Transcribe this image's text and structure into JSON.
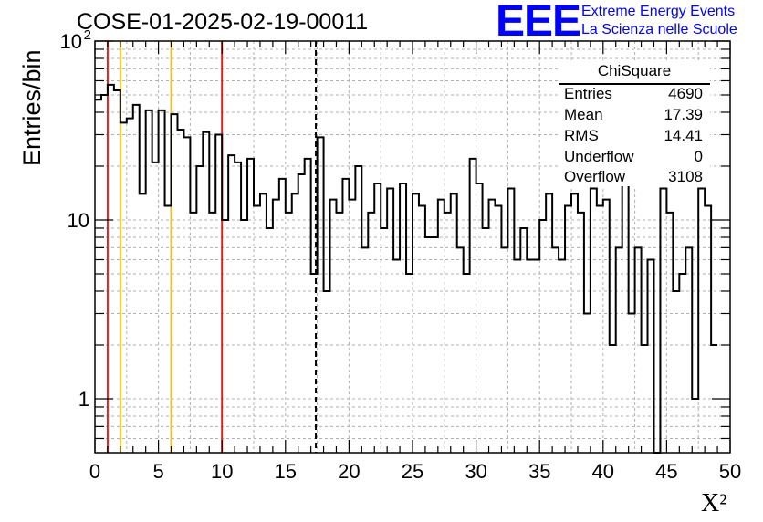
{
  "header": {
    "run_title": "COSE-01-2025-02-19-00011",
    "logo_text": "EEE",
    "logo_line1": "Extreme Energy Events",
    "logo_line2": "La Scienza nelle Scuole"
  },
  "stats_box": {
    "title": "ChiSquare",
    "rows": [
      {
        "key": "Entries",
        "value": "4690"
      },
      {
        "key": "Mean",
        "value": "17.39"
      },
      {
        "key": "RMS",
        "value": "14.41"
      },
      {
        "key": "Underflow",
        "value": "0"
      },
      {
        "key": "Overflow",
        "value": "3108"
      }
    ]
  },
  "colors": {
    "histogram": "#000000",
    "red_lines": "#e02020",
    "yellow_lines": "#f0c020",
    "mean_line": "#000000",
    "grid": "#b0b0b0"
  },
  "chart_data": {
    "type": "histogram",
    "xlabel": "X²",
    "ylabel": "Entries/bin",
    "xlim": [
      0,
      50
    ],
    "ylim": [
      0.5,
      100
    ],
    "yscale": "log",
    "grid": true,
    "x_ticks": [
      0,
      5,
      10,
      15,
      20,
      25,
      30,
      35,
      40,
      45,
      50
    ],
    "y_tick_labels": [
      {
        "value": 1,
        "label": "1"
      },
      {
        "value": 10,
        "label": "10"
      },
      {
        "value": 100,
        "label": "10",
        "exponent": "2"
      }
    ],
    "bin_width": 0.5,
    "bin_values": [
      47,
      50,
      57,
      53,
      35,
      37,
      44,
      14,
      41,
      21,
      41,
      12,
      39,
      32,
      29,
      11,
      20,
      31,
      11,
      30,
      10,
      23,
      21,
      10,
      22,
      12,
      14,
      9,
      13,
      17,
      11,
      14,
      18,
      22,
      5,
      29,
      4,
      13,
      11,
      17,
      13,
      20,
      7,
      11,
      16,
      9,
      15,
      6,
      16,
      5,
      14,
      12,
      8,
      8,
      13,
      11,
      14,
      7,
      5,
      22,
      16,
      9,
      13,
      12,
      7,
      15,
      6,
      9,
      6,
      6,
      10,
      14,
      7,
      6,
      12,
      14,
      11,
      3,
      15,
      12,
      13,
      2,
      7,
      19,
      3,
      7,
      2,
      6,
      0,
      15,
      11,
      4,
      5,
      7,
      1,
      15,
      12,
      2
    ],
    "vertical_lines": [
      {
        "x": 1,
        "kind": "red"
      },
      {
        "x": 10,
        "kind": "red"
      },
      {
        "x": 2,
        "kind": "yellow"
      },
      {
        "x": 6,
        "kind": "yellow"
      },
      {
        "x": 17.39,
        "kind": "mean-dashed"
      }
    ]
  }
}
